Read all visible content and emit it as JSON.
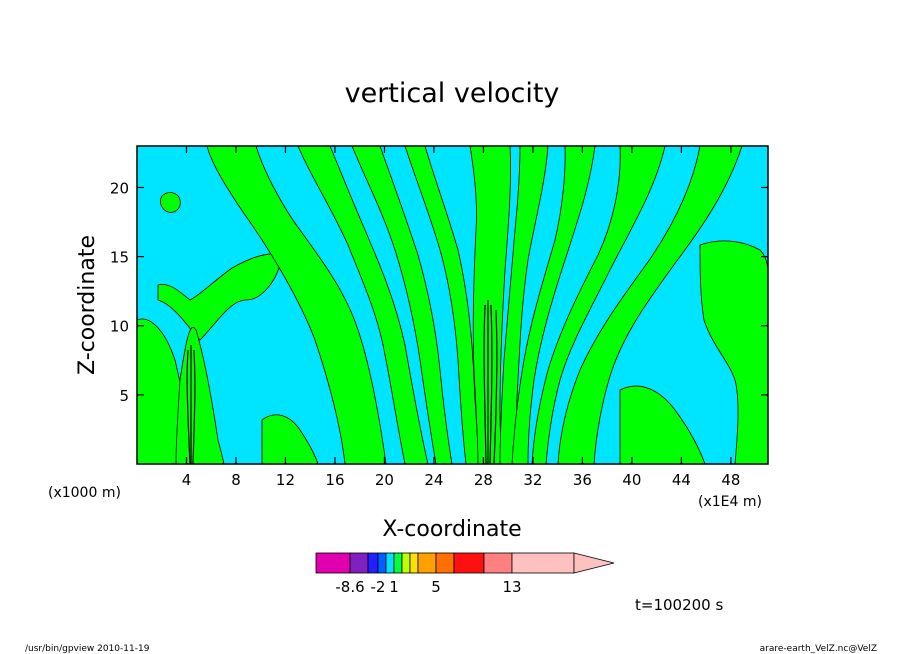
{
  "chart_data": {
    "type": "heatmap",
    "title": "vertical velocity",
    "xlabel": "X-coordinate",
    "ylabel": "Z-coordinate",
    "x_unit_left": "(x1000 m)",
    "x_unit_right": "(x1E4 m)",
    "x_ticks": [
      "4",
      "8",
      "12",
      "16",
      "20",
      "24",
      "28",
      "32",
      "36",
      "40",
      "44",
      "48"
    ],
    "y_ticks": [
      "5",
      "10",
      "15",
      "20"
    ],
    "xlim": [
      0,
      51
    ],
    "ylim": [
      0,
      23
    ],
    "colorbar_labels": [
      "-8.6",
      "-2",
      "1",
      "5",
      "13"
    ],
    "colorbar_colors": [
      "#e000b0",
      "#8020c0",
      "#2020ff",
      "#0060ff",
      "#00e0ff",
      "#00ff40",
      "#c0ff00",
      "#ffe000",
      "#ffa000",
      "#ff7000",
      "#ff1010",
      "#ff8080",
      "#ffc0c0"
    ],
    "background_color": "#00e5ff",
    "positive_color": "#00ff00",
    "time_label": "t=100200 s",
    "updraft_features": [
      {
        "x": 4.5,
        "z_range": [
          0,
          8.5
        ]
      },
      {
        "x": 28.6,
        "z_range": [
          0,
          11.5
        ]
      }
    ]
  },
  "footer": {
    "left": "/usr/bin/gpview   2010-11-19",
    "right": "arare-earth_VelZ.nc@VelZ"
  }
}
